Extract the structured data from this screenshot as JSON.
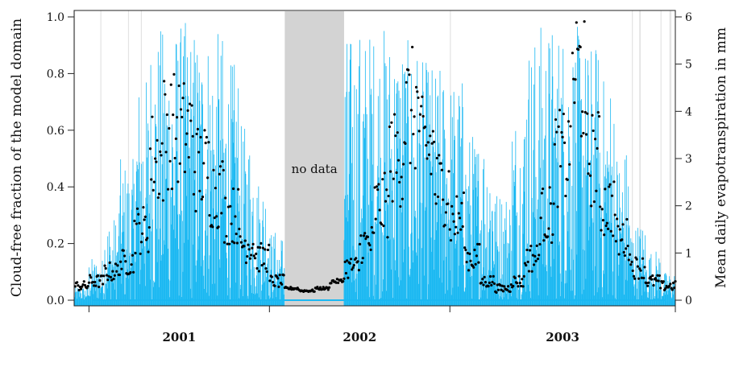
{
  "chart_data": {
    "type": "line",
    "xlabel_ticks": [
      "2001",
      "2002",
      "2003"
    ],
    "x_range": [
      "2000-09",
      "2003-12"
    ],
    "left_axis": {
      "label": "Cloud-free fraction of the model domain",
      "ylim": [
        0,
        1.0
      ],
      "ticks": [
        "0.0",
        "0.2",
        "0.4",
        "0.6",
        "0.8",
        "1.0"
      ]
    },
    "right_axis": {
      "label": "Mean daily evapotranspiration in mm",
      "ylim": [
        0,
        6
      ],
      "ticks": [
        "0",
        "1",
        "2",
        "3",
        "4",
        "5",
        "6"
      ]
    },
    "gap_annotation": "no data",
    "gap_period": [
      "2001-11",
      "2002-03"
    ],
    "series": [
      {
        "style": "cyan daily vertical bars",
        "axis": "left",
        "monthly_envelope": [
          {
            "month": "2000-09",
            "max": 0.05
          },
          {
            "month": "2000-10",
            "max": 0.15
          },
          {
            "month": "2000-11",
            "max": 0.3
          },
          {
            "month": "2000-12",
            "max": 0.5
          },
          {
            "month": "2001-01",
            "max": 0.8
          },
          {
            "month": "2001-02",
            "max": 0.97
          },
          {
            "month": "2001-03",
            "max": 0.99
          },
          {
            "month": "2001-04",
            "max": 0.99
          },
          {
            "month": "2001-05",
            "max": 0.98
          },
          {
            "month": "2001-06",
            "max": 0.95
          },
          {
            "month": "2001-07",
            "max": 0.85
          },
          {
            "month": "2001-08",
            "max": 0.62
          },
          {
            "month": "2001-09",
            "max": 0.45
          },
          {
            "month": "2001-10",
            "max": 0.25
          },
          {
            "month": "2002-03",
            "max": 0.95
          },
          {
            "month": "2002-04",
            "max": 0.97
          },
          {
            "month": "2002-05",
            "max": 0.98
          },
          {
            "month": "2002-06",
            "max": 0.97
          },
          {
            "month": "2002-07",
            "max": 0.92
          },
          {
            "month": "2002-08",
            "max": 0.85
          },
          {
            "month": "2002-09",
            "max": 0.83
          },
          {
            "month": "2002-10",
            "max": 0.8
          },
          {
            "month": "2002-11",
            "max": 0.6
          },
          {
            "month": "2002-12",
            "max": 0.62
          },
          {
            "month": "2003-01",
            "max": 0.4
          },
          {
            "month": "2003-02",
            "max": 0.7
          },
          {
            "month": "2003-03",
            "max": 0.95
          },
          {
            "month": "2003-04",
            "max": 0.99
          },
          {
            "month": "2003-05",
            "max": 0.99
          },
          {
            "month": "2003-06",
            "max": 0.97
          },
          {
            "month": "2003-07",
            "max": 0.92
          },
          {
            "month": "2003-08",
            "max": 0.8
          },
          {
            "month": "2003-09",
            "max": 0.55
          },
          {
            "month": "2003-10",
            "max": 0.28
          },
          {
            "month": "2003-11",
            "max": 0.18
          },
          {
            "month": "2003-12",
            "max": 0.1
          }
        ]
      },
      {
        "style": "black daily points",
        "axis": "right",
        "monthly_mean": [
          {
            "month": "2000-09",
            "value": 0.3
          },
          {
            "month": "2000-10",
            "value": 0.4
          },
          {
            "month": "2000-11",
            "value": 0.6
          },
          {
            "month": "2000-12",
            "value": 0.8
          },
          {
            "month": "2001-01",
            "value": 1.5
          },
          {
            "month": "2001-02",
            "value": 3.0
          },
          {
            "month": "2001-03",
            "value": 3.6
          },
          {
            "month": "2001-04",
            "value": 3.5
          },
          {
            "month": "2001-05",
            "value": 2.8
          },
          {
            "month": "2001-06",
            "value": 2.3
          },
          {
            "month": "2001-07",
            "value": 1.8
          },
          {
            "month": "2001-08",
            "value": 1.2
          },
          {
            "month": "2001-09",
            "value": 0.9
          },
          {
            "month": "2001-10",
            "value": 0.4
          },
          {
            "month": "2001-11",
            "value": 0.25
          },
          {
            "month": "2001-12",
            "value": 0.2
          },
          {
            "month": "2002-01",
            "value": 0.25
          },
          {
            "month": "2002-02",
            "value": 0.4
          },
          {
            "month": "2002-03",
            "value": 0.7
          },
          {
            "month": "2002-04",
            "value": 1.2
          },
          {
            "month": "2002-05",
            "value": 2.0
          },
          {
            "month": "2002-06",
            "value": 3.0
          },
          {
            "month": "2002-07",
            "value": 4.0
          },
          {
            "month": "2002-08",
            "value": 3.2
          },
          {
            "month": "2002-09",
            "value": 2.4
          },
          {
            "month": "2002-10",
            "value": 1.7
          },
          {
            "month": "2002-11",
            "value": 0.9
          },
          {
            "month": "2002-12",
            "value": 0.4
          },
          {
            "month": "2003-01",
            "value": 0.25
          },
          {
            "month": "2003-02",
            "value": 0.4
          },
          {
            "month": "2003-03",
            "value": 0.9
          },
          {
            "month": "2003-04",
            "value": 1.8
          },
          {
            "month": "2003-05",
            "value": 3.0
          },
          {
            "month": "2003-06",
            "value": 4.8
          },
          {
            "month": "2003-07",
            "value": 3.0
          },
          {
            "month": "2003-08",
            "value": 2.0
          },
          {
            "month": "2003-09",
            "value": 1.3
          },
          {
            "month": "2003-10",
            "value": 0.7
          },
          {
            "month": "2003-11",
            "value": 0.4
          },
          {
            "month": "2003-12",
            "value": 0.3
          }
        ]
      }
    ],
    "colors": {
      "cloud_free": "#1ab8f2",
      "evapotranspiration": "#000000",
      "gap_shade": "#d3d3d3",
      "missing_day_lines": "#e3e3e3"
    },
    "grid": false
  }
}
